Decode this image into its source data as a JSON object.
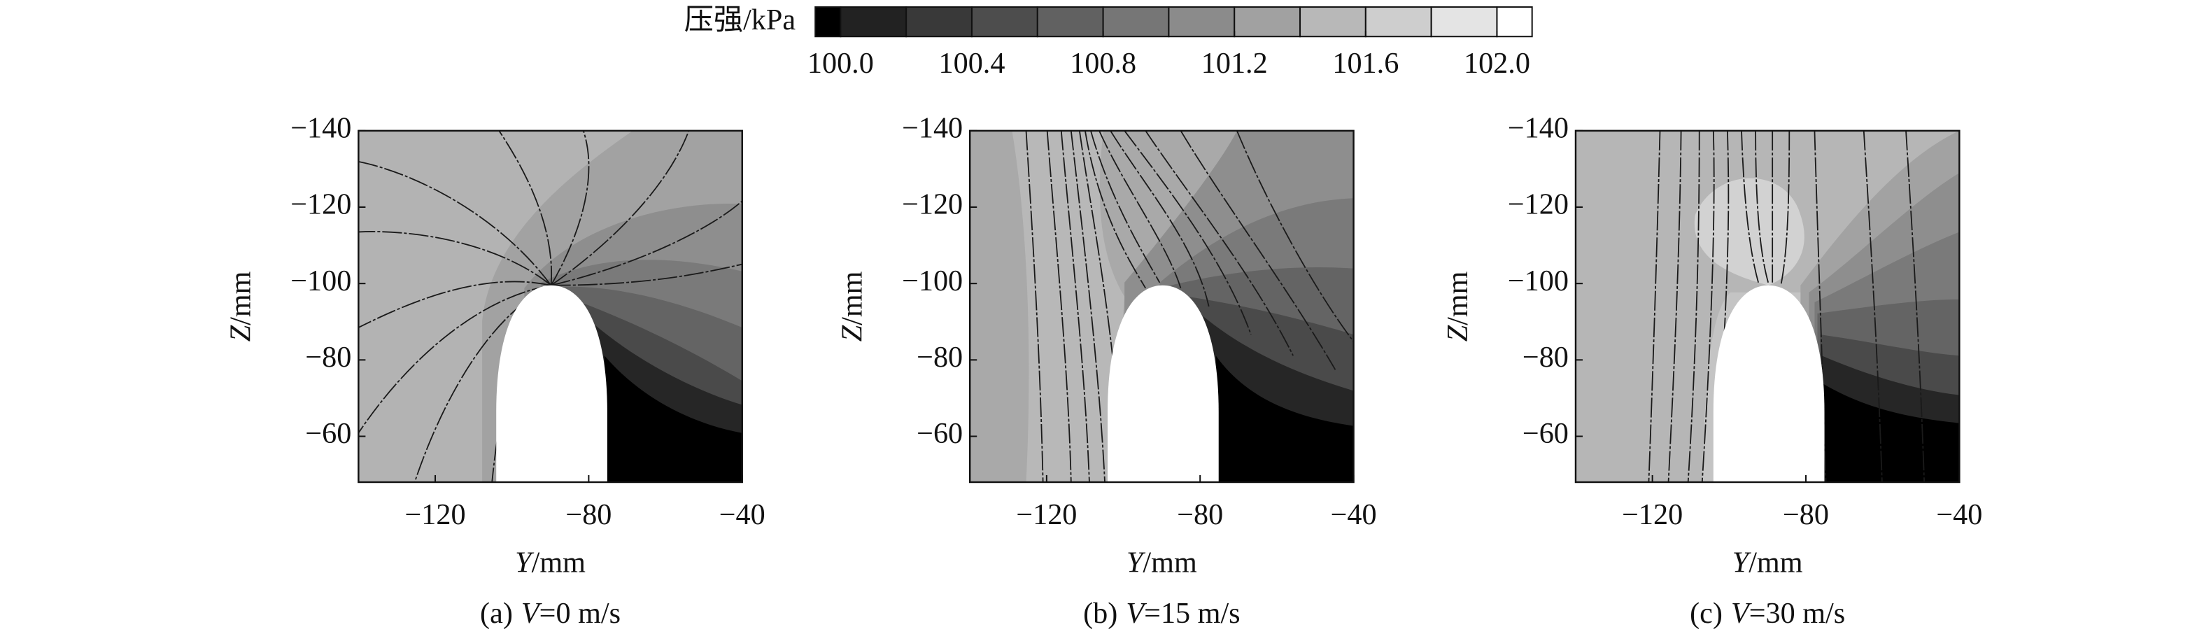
{
  "chart_data": {
    "type": "contour",
    "colorbar": {
      "label": "压强/kPa",
      "clim": [
        100.0,
        102.0
      ],
      "ticks": [
        {
          "value": 100.0,
          "label": "100.0"
        },
        100.4,
        100.8,
        101.2,
        101.6,
        {
          "value": 102.0,
          "label": "102.0"
        }
      ],
      "colors": [
        "#000000",
        "#222222",
        "#393939",
        "#4d4d4d",
        "#616161",
        "#767676",
        "#8b8b8b",
        "#a1a1a1",
        "#b8b8b8",
        "#cecece",
        "#e4e4e4",
        "#ffffff"
      ]
    },
    "panels": [
      {
        "caption_parts": [
          "(a)",
          "V",
          "=0 m/s"
        ],
        "x_label": [
          "Y",
          "/mm"
        ],
        "y_label": [
          "Z",
          "/mm"
        ],
        "xlim": [
          -140,
          -40
        ],
        "ylim": [
          -140,
          -48
        ],
        "xticks": [
          {
            "value": -120,
            "label": "−120"
          },
          {
            "value": -80,
            "label": "−80"
          },
          {
            "value": -40,
            "label": "−40"
          }
        ],
        "yticks": [
          {
            "value": -140,
            "label": "−140"
          },
          {
            "value": -120,
            "label": "−120"
          },
          {
            "value": -100,
            "label": "−100"
          },
          {
            "value": -80,
            "label": "−80"
          },
          {
            "value": -60,
            "label": "−60"
          }
        ]
      },
      {
        "caption_parts": [
          "(b)",
          "V",
          "=15 m/s"
        ],
        "x_label": [
          "Y",
          "/mm"
        ],
        "y_label": [
          "Z",
          "/mm"
        ],
        "xlim": [
          -140,
          -40
        ],
        "ylim": [
          -140,
          -48
        ],
        "xticks": [
          {
            "value": -120,
            "label": "−120"
          },
          {
            "value": -80,
            "label": "−80"
          },
          {
            "value": -40,
            "label": "−40"
          }
        ],
        "yticks": [
          {
            "value": -140,
            "label": "−140"
          },
          {
            "value": -120,
            "label": "−120"
          },
          {
            "value": -100,
            "label": "−100"
          },
          {
            "value": -80,
            "label": "−80"
          },
          {
            "value": -60,
            "label": "−60"
          }
        ]
      },
      {
        "caption_parts": [
          "(c)",
          "V",
          "=30 m/s"
        ],
        "x_label": [
          "Y",
          "/mm"
        ],
        "y_label": [
          "Z",
          "/mm"
        ],
        "xlim": [
          -140,
          -40
        ],
        "ylim": [
          -140,
          -48
        ],
        "xticks": [
          {
            "value": -120,
            "label": "−120"
          },
          {
            "value": -80,
            "label": "−80"
          },
          {
            "value": -40,
            "label": "−40"
          }
        ],
        "yticks": [
          {
            "value": -140,
            "label": "−140"
          },
          {
            "value": -120,
            "label": "−120"
          },
          {
            "value": -100,
            "label": "−100"
          },
          {
            "value": -80,
            "label": "−80"
          },
          {
            "value": -60,
            "label": "−60"
          }
        ]
      }
    ]
  }
}
